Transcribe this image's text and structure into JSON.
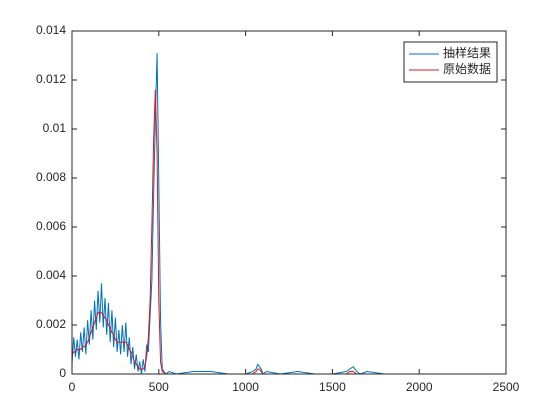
{
  "chart_data": {
    "type": "line",
    "x": [
      0,
      10,
      20,
      30,
      40,
      50,
      60,
      70,
      80,
      90,
      100,
      110,
      120,
      130,
      140,
      150,
      160,
      170,
      180,
      190,
      200,
      210,
      220,
      230,
      240,
      250,
      260,
      270,
      280,
      290,
      300,
      310,
      320,
      330,
      340,
      350,
      360,
      370,
      380,
      390,
      400,
      410,
      420,
      430,
      440,
      450,
      460,
      470,
      480,
      490,
      500,
      510,
      520,
      540,
      560,
      600,
      700,
      800,
      900,
      1000,
      1040,
      1060,
      1070,
      1080,
      1090,
      1100,
      1120,
      1200,
      1300,
      1400,
      1500,
      1580,
      1600,
      1620,
      1640,
      1660,
      1700,
      1800,
      1900,
      2000
    ],
    "series": [
      {
        "name": "抽样结果",
        "color": "#0072bd",
        "values": [
          0.0004,
          0.0015,
          0.0007,
          0.0014,
          0.0006,
          0.0017,
          0.0009,
          0.0019,
          0.0008,
          0.0022,
          0.0012,
          0.0026,
          0.0014,
          0.003,
          0.0018,
          0.0034,
          0.0021,
          0.0037,
          0.0019,
          0.0031,
          0.0016,
          0.0029,
          0.0013,
          0.0026,
          0.0011,
          0.0023,
          0.0009,
          0.0018,
          0.0008,
          0.002,
          0.0009,
          0.0021,
          0.0007,
          0.0015,
          0.0004,
          0.0011,
          0.0002,
          0.0008,
          0.0001,
          0.0005,
          0,
          0.0006,
          0.0001,
          0.0012,
          0.0009,
          0.0024,
          0.0038,
          0.0072,
          0.0104,
          0.0131,
          0.0078,
          0.0022,
          0.0002,
          0,
          0.0001,
          0,
          0.0001,
          0.0001,
          0,
          0,
          0.0001,
          0.0002,
          0.0004,
          0.0003,
          0.0002,
          0,
          0.0001,
          0,
          0.0001,
          0,
          0,
          0.0001,
          0.0002,
          0.0003,
          0.0001,
          0,
          0.0001,
          0,
          0,
          0
        ]
      },
      {
        "name": "原始数据",
        "color": "#d7191c",
        "values": [
          0.0008,
          0.0009,
          0.0009,
          0.001,
          0.001,
          0.001,
          0.0011,
          0.0011,
          0.0012,
          0.0013,
          0.0015,
          0.0017,
          0.0019,
          0.0021,
          0.0023,
          0.0025,
          0.0025,
          0.0025,
          0.0024,
          0.0023,
          0.0022,
          0.002,
          0.0019,
          0.0017,
          0.0016,
          0.0014,
          0.0013,
          0.0013,
          0.0013,
          0.0013,
          0.0013,
          0.0013,
          0.0012,
          0.001,
          0.0009,
          0.0007,
          0.0005,
          0.0004,
          0.0003,
          0.0002,
          0.0002,
          0.0002,
          0.0003,
          0.0007,
          0.0015,
          0.003,
          0.006,
          0.0095,
          0.0116,
          0.009,
          0.003,
          0.0005,
          0.0001,
          0,
          0,
          0,
          0,
          0,
          0,
          0,
          0,
          0.0001,
          0.0002,
          0.0002,
          0.0001,
          0,
          0,
          0,
          0,
          0,
          0,
          0,
          0.0001,
          0.0001,
          0,
          0,
          0,
          0,
          0,
          0
        ]
      }
    ],
    "xlim": [
      0,
      2500
    ],
    "xticks": [
      0,
      500,
      1000,
      1500,
      2000,
      2500
    ],
    "ylim": [
      0,
      0.014
    ],
    "yticks": [
      0,
      0.002,
      0.004,
      0.006,
      0.008,
      0.01,
      0.012,
      0.014
    ],
    "grid": false,
    "legend": "northeast"
  }
}
